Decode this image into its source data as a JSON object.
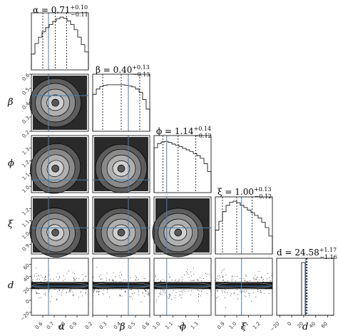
{
  "chart_data": {
    "type": "corner",
    "parameters": [
      "α",
      "β",
      "ϕ",
      "ξ",
      "d"
    ],
    "titles": [
      {
        "prefix": "α = 0.71",
        "plus": "+0.10",
        "minus": "−0.11"
      },
      {
        "prefix": "β = 0.40",
        "plus": "+0.13",
        "minus": "−0.13"
      },
      {
        "prefix": "ϕ = 1.14",
        "plus": "+0.14",
        "minus": "−0.12"
      },
      {
        "prefix": "ξ = 1.00",
        "plus": "+0.13",
        "minus": "−0.12"
      },
      {
        "prefix": "d = 24.58",
        "plus": "+1.17",
        "minus": "−1.16"
      }
    ],
    "ranges": [
      [
        0.5,
        1.0
      ],
      [
        0.2,
        0.6
      ],
      [
        0.95,
        1.4
      ],
      [
        0.82,
        1.3
      ],
      [
        -25,
        70
      ]
    ],
    "ticks": [
      [
        "0.6",
        "0.7",
        "0.8",
        "0.9"
      ],
      [
        "0.2",
        "0.3",
        "0.4",
        "0.5",
        "0.6"
      ],
      [
        "1.0",
        "1.1",
        "1.2",
        "1.3"
      ],
      [
        "0.9",
        "1.0",
        "1.1",
        "1.2"
      ],
      [
        "−20",
        "0",
        "20",
        "40",
        "60"
      ]
    ],
    "ytick_values": {
      "β": [
        "0.6",
        "0.5",
        "0.4",
        "0.3",
        "0.2"
      ],
      "ϕ": [
        "1.3",
        "1.2",
        "1.1",
        "1.0"
      ],
      "ξ": [
        "1.2",
        "1.1",
        "1.0",
        "0.9"
      ],
      "d": [
        "60",
        "40",
        "20",
        "0",
        "−20"
      ]
    },
    "truths": [
      0.65,
      0.45,
      1.05,
      1.04,
      23.5
    ],
    "quantiles": [
      [
        0.6,
        0.71,
        0.81
      ],
      [
        0.27,
        0.4,
        0.53
      ],
      [
        1.02,
        1.14,
        1.28
      ],
      [
        0.88,
        1.0,
        1.13
      ],
      [
        23.42,
        24.58,
        25.75
      ]
    ],
    "histograms": [
      [
        0.3,
        0.5,
        0.62,
        0.72,
        0.8,
        0.86,
        0.92,
        0.97,
        1.0,
        0.98,
        0.93,
        0.86,
        0.76,
        0.62,
        0.48,
        0.34
      ],
      [
        0.7,
        0.8,
        0.85,
        0.87,
        0.88,
        0.88,
        0.88,
        0.88,
        0.88,
        0.87,
        0.86,
        0.84,
        0.8,
        0.74,
        0.6,
        0.42
      ],
      [
        0.85,
        0.93,
        0.96,
        0.97,
        0.95,
        0.92,
        0.9,
        0.87,
        0.84,
        0.81,
        0.78,
        0.74,
        0.7,
        0.65,
        0.55,
        0.4
      ],
      [
        0.45,
        0.62,
        0.8,
        0.92,
        0.98,
        1.0,
        0.97,
        0.92,
        0.88,
        0.83,
        0.78,
        0.73,
        0.68,
        0.6,
        0.5,
        0.34
      ],
      [
        0.0,
        0.0,
        0.0,
        0.0,
        0.0,
        0.0,
        0.0,
        1.0,
        0.0,
        0.0,
        0.0,
        0.0,
        0.0,
        0.0,
        0.0,
        0.0
      ]
    ],
    "color_truth": "#4a7fb0",
    "color_quantile": "#000000",
    "color_contour": "#000000"
  }
}
